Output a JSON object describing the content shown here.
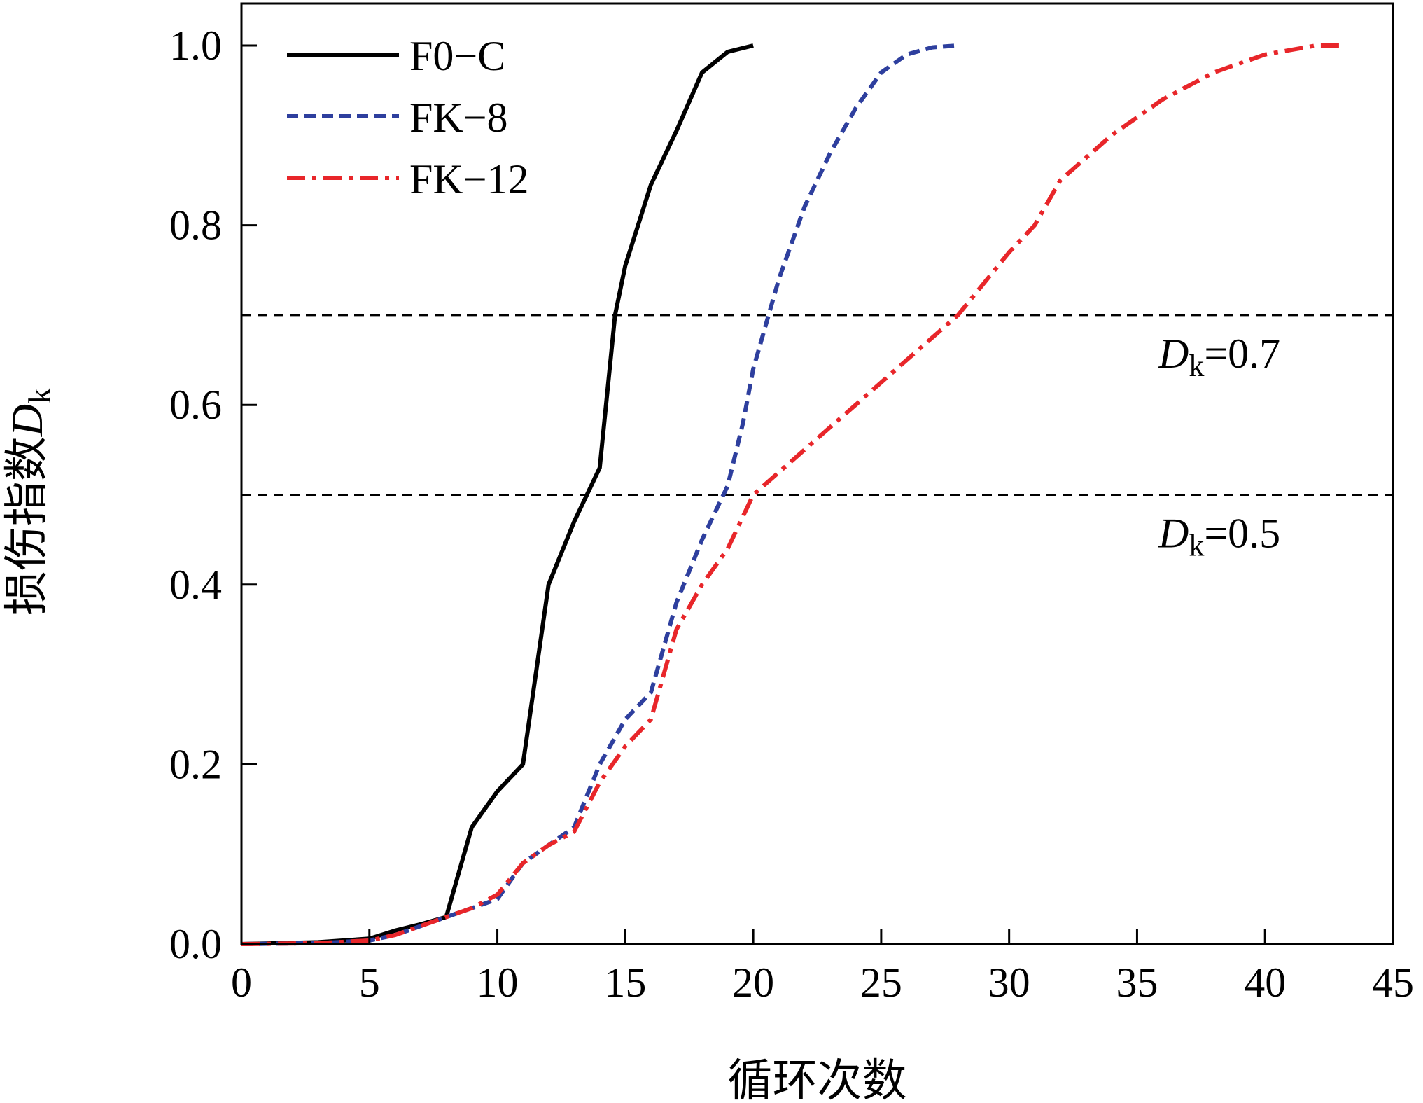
{
  "chart_data": {
    "type": "line",
    "title": "",
    "xlabel": "循环次数",
    "ylabel": "损伤指数",
    "ylabel_symbol": "D",
    "ylabel_sub": "k",
    "xlim": [
      0,
      45
    ],
    "ylim": [
      0,
      1.0
    ],
    "xticks": [
      0,
      5,
      10,
      15,
      20,
      25,
      30,
      35,
      40,
      45
    ],
    "yticks": [
      "0.0",
      "0.2",
      "0.4",
      "0.6",
      "0.8",
      "1.0"
    ],
    "legend_position": "top-left",
    "series": [
      {
        "name": "F0−C",
        "color": "#000000",
        "style": "solid",
        "x": [
          0,
          3,
          5,
          6,
          7,
          8,
          9,
          10,
          11,
          12,
          13,
          14,
          14.6,
          15,
          16,
          17,
          18,
          19,
          20
        ],
        "y": [
          0,
          0.002,
          0.006,
          0.015,
          0.022,
          0.03,
          0.13,
          0.17,
          0.2,
          0.4,
          0.47,
          0.53,
          0.7,
          0.755,
          0.845,
          0.905,
          0.97,
          0.993,
          1.0
        ]
      },
      {
        "name": "FK−8",
        "color": "#2E3F9E",
        "style": "dashed",
        "x": [
          0,
          3,
          5,
          6,
          7,
          8,
          9,
          10,
          11,
          12,
          13,
          14,
          15,
          16,
          17,
          18,
          19,
          19.6,
          20,
          21,
          22,
          23,
          24,
          25,
          26,
          27,
          28
        ],
        "y": [
          0,
          0.001,
          0.004,
          0.01,
          0.02,
          0.03,
          0.04,
          0.05,
          0.09,
          0.11,
          0.13,
          0.2,
          0.25,
          0.28,
          0.38,
          0.45,
          0.51,
          0.58,
          0.64,
          0.74,
          0.82,
          0.88,
          0.93,
          0.97,
          0.99,
          0.998,
          1.0
        ]
      },
      {
        "name": "FK−12",
        "color": "#E8262A",
        "style": "dashdot",
        "x": [
          0,
          3,
          5,
          6,
          7,
          8,
          9,
          10,
          11,
          12,
          13,
          14,
          15,
          16,
          17,
          18,
          19,
          20,
          22,
          24,
          26,
          28,
          30,
          31,
          32,
          34,
          36,
          38,
          40,
          42,
          43
        ],
        "y": [
          0,
          0.001,
          0.004,
          0.01,
          0.02,
          0.03,
          0.04,
          0.055,
          0.09,
          0.11,
          0.125,
          0.18,
          0.22,
          0.25,
          0.35,
          0.4,
          0.44,
          0.5,
          0.55,
          0.6,
          0.65,
          0.7,
          0.77,
          0.8,
          0.85,
          0.9,
          0.94,
          0.97,
          0.99,
          1.0,
          1.0
        ]
      }
    ],
    "reference_lines": [
      {
        "y": 0.7,
        "label_symbol": "D",
        "label_sub": "k",
        "label_value": "=0.7"
      },
      {
        "y": 0.5,
        "label_symbol": "D",
        "label_sub": "k",
        "label_value": "=0.5"
      }
    ]
  }
}
